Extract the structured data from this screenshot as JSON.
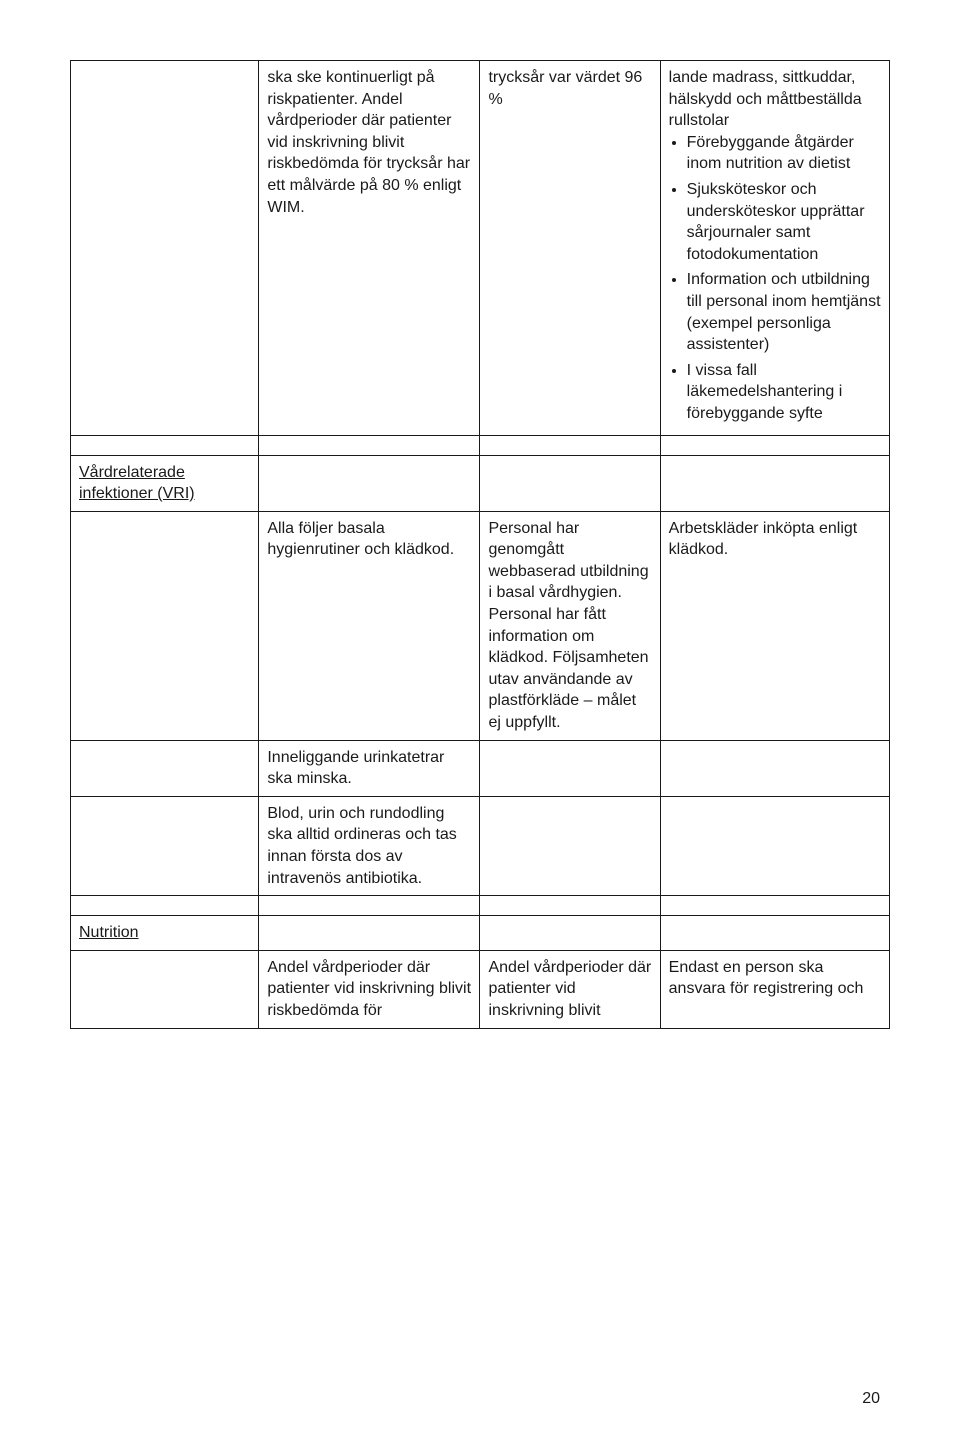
{
  "row1": {
    "col2": "ska ske kontinuerligt på riskpatienter. Andel vårdperioder där patienter vid inskrivning blivit riskbedömda för trycksår har ett målvärde på 80 % enligt WIM.",
    "col3": "trycksår var värdet 96 %",
    "col4_pre": "lande madrass, sittkuddar, hälskydd och måttbeställda rullstolar",
    "col4_items": [
      "Förebyggande åtgärder inom nutrition av dietist",
      "Sjuksköteskor och undersköteskor upprättar sårjournaler samt fotodokumentation",
      "Information och utbildning till personal inom hemtjänst (exempel personliga assistenter)",
      "I vissa fall läkemedelshantering i förebyggande syfte"
    ]
  },
  "section1": "Vårdrelaterade infektioner (VRI)",
  "row2": {
    "col2": "Alla följer basala hygienrutiner och klädkod.",
    "col3": "Personal har genomgått webbaserad utbildning i basal vårdhygien. Personal har fått information om klädkod. Följsamheten utav användande av plastförkläde – målet ej uppfyllt.",
    "col4": "Arbetskläder inköpta enligt klädkod."
  },
  "row3": {
    "col2": "Inneliggande urinkatetrar ska minska."
  },
  "row4": {
    "col2": "Blod, urin och rundodling ska alltid ordineras och tas innan första dos av intravenös antibiotika."
  },
  "section2": "Nutrition",
  "row5": {
    "col2": "Andel vårdperioder där patienter vid inskrivning blivit riskbedömda för",
    "col3": "Andel vårdperioder där patienter vid inskrivning blivit",
    "col4": "Endast en person ska ansvara för registrering och"
  },
  "pagenum": "20"
}
